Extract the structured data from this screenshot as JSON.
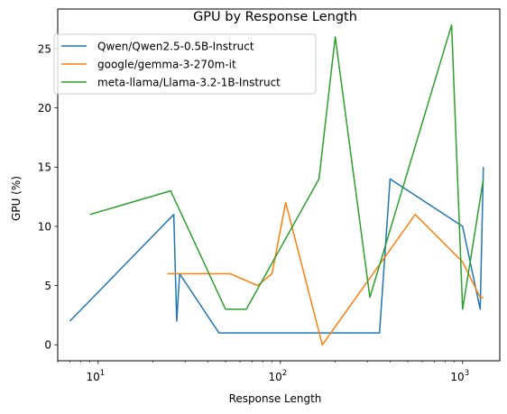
{
  "chart_data": {
    "type": "line",
    "title": "GPU by Response Length",
    "xlabel": "Response Length",
    "ylabel": "GPU (%)",
    "xscale": "log",
    "xlim": [
      6,
      1600
    ],
    "ylim": [
      -1.35,
      28.35
    ],
    "xticks": [
      {
        "value": 10,
        "base": "10",
        "exp": "1"
      },
      {
        "value": 100,
        "base": "10",
        "exp": "2"
      },
      {
        "value": 1000,
        "base": "10",
        "exp": "3"
      }
    ],
    "yticks": [
      0,
      5,
      10,
      15,
      20,
      25
    ],
    "grid": false,
    "legend_position": "top-left",
    "series": [
      {
        "name": "Qwen/Qwen2.5-0.5B-Instruct",
        "color": "#1f77b4",
        "x": [
          7,
          26,
          27,
          28,
          46,
          350,
          400,
          1000,
          1250,
          1300
        ],
        "y": [
          2,
          11,
          2,
          6,
          1,
          1,
          14,
          10,
          3,
          15
        ]
      },
      {
        "name": "google/gemma-3-270m-it",
        "color": "#ff7f0e",
        "x": [
          24,
          53,
          75,
          90,
          107,
          170,
          550,
          1000,
          1250,
          1300
        ],
        "y": [
          6,
          6,
          5,
          6,
          12,
          0,
          11,
          7,
          4,
          4
        ]
      },
      {
        "name": "meta-llama/Llama-3.2-1B-Instruct",
        "color": "#2ca02c",
        "x": [
          9,
          25,
          50,
          65,
          163,
          200,
          310,
          870,
          1000,
          1300
        ],
        "y": [
          11,
          13,
          3,
          3,
          14,
          26,
          4,
          27,
          3,
          14
        ]
      }
    ]
  }
}
